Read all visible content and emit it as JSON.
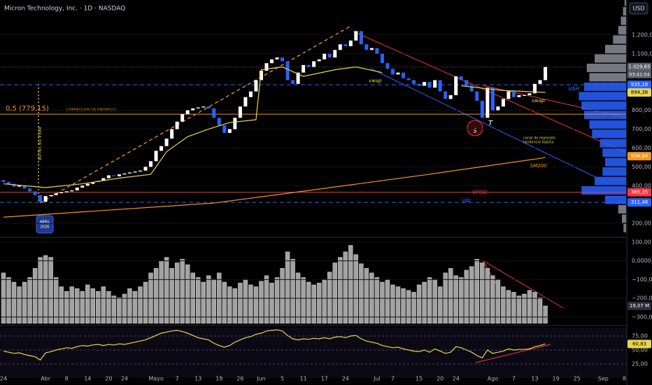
{
  "header": {
    "title": "Micron Technology, Inc. · 1D · NASDAQ",
    "currency": "USD"
  },
  "annotations": [
    "CORRECCION DE FIBONACCI",
    "AREA DE VALOR",
    "ABRIL",
    "2026",
    "VAH",
    "VPOC",
    "VAL",
    "canal de regresión",
    "tendencia bajista.",
    "S",
    "T"
  ],
  "chart_data": [
    {
      "type": "candlestick",
      "up_color": "#ffffff",
      "down_color": "#2962ff",
      "open": [
        430,
        420,
        410,
        395,
        400,
        385,
        370,
        350,
        315,
        345,
        350,
        360,
        365,
        370,
        375,
        390,
        400,
        410,
        420,
        425,
        440,
        455,
        450,
        460,
        465,
        470,
        475,
        480,
        500,
        530,
        585,
        610,
        650,
        700,
        740,
        780,
        800,
        810,
        815,
        820,
        810,
        760,
        720,
        680,
        700,
        760,
        820,
        870,
        900,
        960,
        1010,
        1050,
        1070,
        1080,
        1060,
        960,
        940,
        1000,
        1040,
        1030,
        1060,
        1070,
        1100,
        1080,
        1120,
        1150,
        1140,
        1170,
        1220,
        1150,
        1120,
        1130,
        1100,
        1050,
        1020,
        990,
        1000,
        970,
        960,
        940,
        930,
        950,
        920,
        960,
        900,
        860,
        880,
        980,
        960,
        930,
        900,
        850,
        760,
        920,
        800,
        820,
        860,
        900,
        870,
        880,
        880,
        890,
        940,
        960
      ],
      "close": [
        420,
        410,
        395,
        400,
        385,
        370,
        350,
        315,
        345,
        350,
        360,
        365,
        370,
        375,
        390,
        400,
        410,
        420,
        425,
        440,
        455,
        450,
        460,
        465,
        470,
        475,
        480,
        500,
        530,
        585,
        610,
        650,
        700,
        740,
        780,
        800,
        810,
        815,
        820,
        810,
        760,
        720,
        680,
        700,
        760,
        820,
        870,
        900,
        960,
        1010,
        1050,
        1070,
        1080,
        1060,
        960,
        940,
        1000,
        1040,
        1030,
        1060,
        1070,
        1100,
        1080,
        1120,
        1150,
        1140,
        1170,
        1220,
        1150,
        1120,
        1130,
        1100,
        1050,
        1020,
        990,
        1000,
        970,
        960,
        940,
        930,
        950,
        920,
        960,
        900,
        860,
        880,
        980,
        960,
        930,
        900,
        850,
        760,
        920,
        800,
        820,
        860,
        900,
        870,
        880,
        880,
        890,
        940,
        960,
        1029.65
      ],
      "xlim": [
        -0.66,
        118.35
      ],
      "ylim": [
        130,
        1385
      ],
      "yticks": [
        {
          "value": 200,
          "label": "200,00"
        },
        {
          "value": 400,
          "label": "400,00"
        },
        {
          "value": 500,
          "label": "500,00"
        },
        {
          "value": 600,
          "label": "600,00"
        },
        {
          "value": 700,
          "label": "700,00"
        },
        {
          "value": 800,
          "label": "800,00"
        },
        {
          "value": 1100,
          "label": "1.100,00"
        },
        {
          "value": 1200,
          "label": "1.200,00"
        }
      ],
      "xticks": [
        {
          "value": 0,
          "label": "24"
        },
        {
          "value": 8,
          "label": "Abr"
        },
        {
          "value": 12,
          "label": "8"
        },
        {
          "value": 16,
          "label": "14"
        },
        {
          "value": 20,
          "label": "20"
        },
        {
          "value": 23,
          "label": "24"
        },
        {
          "value": 29,
          "label": "Mayo"
        },
        {
          "value": 33,
          "label": "7"
        },
        {
          "value": 37,
          "label": "13"
        },
        {
          "value": 41,
          "label": "19"
        },
        {
          "value": 45,
          "label": "26"
        },
        {
          "value": 49,
          "label": "Jun"
        },
        {
          "value": 53,
          "label": "5"
        },
        {
          "value": 57,
          "label": "11"
        },
        {
          "value": 61,
          "label": "17"
        },
        {
          "value": 65,
          "label": "24"
        },
        {
          "value": 71,
          "label": "Jul"
        },
        {
          "value": 74,
          "label": "7"
        },
        {
          "value": 79,
          "label": "15"
        },
        {
          "value": 83,
          "label": "20"
        },
        {
          "value": 86,
          "label": "24"
        },
        {
          "value": 93,
          "label": "Ago"
        },
        {
          "value": 97,
          "label": "7"
        },
        {
          "value": 101,
          "label": "13"
        },
        {
          "value": 105,
          "label": "19"
        },
        {
          "value": 109,
          "label": "25"
        },
        {
          "value": 114,
          "label": "Sep"
        },
        {
          "value": 118,
          "label": "8"
        }
      ],
      "lines": [
        {
          "name": "SM200",
          "color": "#f7931a",
          "x": [
            0,
            40,
            60,
            80,
            103
          ],
          "values": [
            233,
            308,
            382,
            457,
            549
          ]
        },
        {
          "name": "vwap",
          "color": "#e8d44d",
          "x": [
            0,
            8,
            15,
            22,
            28,
            31,
            35,
            39,
            43,
            48,
            49,
            53,
            57,
            63,
            67,
            72,
            80,
            87,
            95,
            103
          ],
          "values": [
            410,
            390,
            410,
            440,
            460,
            580,
            660,
            700,
            735,
            750,
            1015,
            1030,
            980,
            1015,
            1030,
            1000,
            null,
            930,
            905,
            895
          ]
        }
      ],
      "levels": [
        {
          "value": 1029.65,
          "label": "1.029,65",
          "sublabel": "03:41:54",
          "color": "#5d606b",
          "line": "dotted"
        },
        {
          "value": 935.18,
          "label": "935,18",
          "color": "#2962ff",
          "line": "dashed"
        },
        {
          "value": 894.38,
          "label": "894,38",
          "color": "#e8d44d",
          "line": "none"
        },
        {
          "value": 779.15,
          "tag": "0,5 (779,15)",
          "color": "#f7931a",
          "line": "solid"
        },
        {
          "value": 556.64,
          "label": "556,64",
          "color": "#f7931a",
          "line": "none"
        },
        {
          "value": 365.35,
          "label": "365,35",
          "color": "#f23645",
          "line": "solid"
        },
        {
          "value": 311.48,
          "label": "311,48",
          "color": "#2962ff",
          "line": "dashed"
        }
      ]
    },
    {
      "type": "bar",
      "ylim": [
        -334,
        122
      ],
      "yticks": [
        {
          "value": 100,
          "label": "100,00"
        },
        {
          "value": 0,
          "label": "0,0000"
        },
        {
          "value": -100,
          "label": "−100,00"
        },
        {
          "value": -200,
          "label": "−200,00"
        },
        {
          "value": -300,
          "label": "−300,00"
        }
      ],
      "y2lim": [
        0,
        93
      ],
      "series": [
        {
          "color": "#a3a3a3",
          "axis": "y2",
          "values": [
            55,
            50,
            45,
            40,
            45,
            50,
            60,
            72,
            74,
            72,
            50,
            40,
            35,
            40,
            38,
            35,
            42,
            38,
            35,
            40,
            35,
            30,
            28,
            32,
            38,
            35,
            40,
            45,
            55,
            60,
            68,
            72,
            60,
            66,
            70,
            64,
            55,
            50,
            45,
            52,
            48,
            55,
            45,
            40,
            38,
            44,
            48,
            42,
            40,
            46,
            52,
            44,
            50,
            60,
            78,
            70,
            55,
            50,
            45,
            42,
            44,
            48,
            56,
            66,
            72,
            78,
            85,
            75,
            65,
            60,
            55,
            50,
            45,
            48,
            42,
            40,
            38,
            36,
            34,
            42,
            45,
            50,
            48,
            40,
            55,
            60,
            52,
            50,
            58,
            62,
            70,
            66,
            60,
            52,
            48,
            40,
            36,
            34,
            30,
            32,
            36,
            34,
            28,
            19.07
          ],
          "value_labels": [
            null,
            null,
            null,
            null,
            null,
            null,
            null,
            null,
            null,
            null,
            null,
            null,
            null,
            null,
            null,
            null,
            null,
            null,
            null,
            null,
            null,
            null,
            null,
            null,
            null,
            null,
            null,
            null,
            null,
            null,
            null,
            null,
            null,
            null,
            null,
            null,
            null,
            null,
            null,
            null,
            null,
            null,
            null,
            null,
            null,
            null,
            null,
            null,
            null,
            null,
            null,
            null,
            null,
            null,
            null,
            null,
            null,
            null,
            null,
            null,
            null,
            null,
            null,
            null,
            null,
            null,
            null,
            null,
            null,
            null,
            null,
            null,
            null,
            null,
            null,
            null,
            null,
            null,
            null,
            null,
            null,
            null,
            null,
            null,
            null,
            null,
            null,
            null,
            null,
            null,
            null,
            null,
            null,
            null,
            null,
            null,
            null,
            null,
            null,
            null,
            null,
            null,
            null,
            "19,07 M"
          ]
        }
      ]
    },
    {
      "type": "line",
      "ylim": [
        0,
        90
      ],
      "yticks": [
        {
          "value": 75,
          "label": "75,00"
        },
        {
          "value": 50,
          "label": "50,00"
        },
        {
          "value": 25,
          "label": "25,00"
        }
      ],
      "series": [
        {
          "color": "#e8d44d",
          "values": [
            48,
            46,
            44,
            45,
            42,
            40,
            38,
            32,
            45,
            47,
            50,
            52,
            54,
            53,
            56,
            58,
            57,
            59,
            60,
            58,
            60,
            59,
            61,
            60,
            62,
            64,
            66,
            68,
            72,
            76,
            80,
            82,
            84,
            85,
            83,
            80,
            76,
            72,
            70,
            68,
            62,
            58,
            55,
            58,
            64,
            68,
            72,
            74,
            78,
            80,
            84,
            85,
            86,
            84,
            76,
            70,
            68,
            70,
            69,
            71,
            70,
            72,
            70,
            73,
            74,
            72,
            75,
            76,
            70,
            66,
            64,
            62,
            58,
            56,
            54,
            55,
            52,
            50,
            48,
            47,
            50,
            46,
            52,
            48,
            44,
            46,
            56,
            54,
            50,
            46,
            40,
            36,
            50,
            44,
            46,
            48,
            52,
            50,
            51,
            51,
            52,
            56,
            58,
            60.83
          ],
          "value_labels": [
            null,
            null,
            null,
            null,
            null,
            null,
            null,
            null,
            null,
            null,
            null,
            null,
            null,
            null,
            null,
            null,
            null,
            null,
            null,
            null,
            null,
            null,
            null,
            null,
            null,
            null,
            null,
            null,
            null,
            null,
            null,
            null,
            null,
            null,
            null,
            null,
            null,
            null,
            null,
            null,
            null,
            null,
            null,
            null,
            null,
            null,
            null,
            null,
            null,
            null,
            null,
            null,
            null,
            null,
            null,
            null,
            null,
            null,
            null,
            null,
            null,
            null,
            null,
            null,
            null,
            null,
            null,
            null,
            null,
            null,
            null,
            null,
            null,
            null,
            null,
            null,
            null,
            null,
            null,
            null,
            null,
            null,
            null,
            null,
            null,
            null,
            null,
            null,
            null,
            null,
            null,
            null,
            null,
            null,
            null,
            null,
            null,
            null,
            null,
            null,
            null,
            null,
            null,
            "60,83"
          ]
        }
      ]
    },
    {
      "type": "profile",
      "xlim": [
        0,
        100
      ],
      "inside": [
        311.48,
        935.18
      ],
      "colors": {
        "inside": "#2962ff",
        "outside": "#8a8d96"
      },
      "prices": [
        175,
        225,
        275,
        325,
        375,
        425,
        475,
        525,
        575,
        625,
        675,
        725,
        775,
        825,
        875,
        925,
        975,
        1025,
        1075,
        1125,
        1175,
        1225,
        1275,
        1325,
        1375
      ],
      "values": [
        5,
        8,
        15,
        40,
        85,
        60,
        45,
        40,
        45,
        50,
        65,
        70,
        80,
        85,
        90,
        80,
        70,
        75,
        60,
        40,
        25,
        15,
        10,
        6,
        3
      ]
    }
  ]
}
